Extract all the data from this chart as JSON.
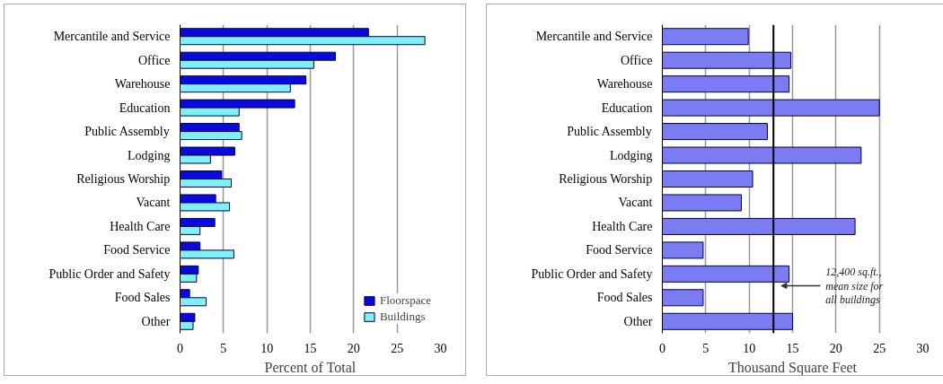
{
  "chart_data": [
    {
      "type": "bar",
      "orientation": "horizontal",
      "categories": [
        "Mercantile and Service",
        "Office",
        "Warehouse",
        "Education",
        "Public Assembly",
        "Lodging",
        "Religious Worship",
        "Vacant",
        "Health Care",
        "Food Service",
        "Public Order and Safety",
        "Food Sales",
        "Other"
      ],
      "series": [
        {
          "name": "Floorspace",
          "color": "#0a0ae0",
          "values": [
            21.7,
            17.9,
            14.5,
            13.2,
            6.8,
            6.3,
            4.8,
            4.1,
            4.0,
            2.3,
            2.1,
            1.1,
            1.7
          ]
        },
        {
          "name": "Buildings",
          "color": "#80f0f8",
          "values": [
            28.2,
            15.4,
            12.7,
            6.8,
            7.1,
            3.5,
            5.9,
            5.7,
            2.3,
            6.2,
            1.9,
            3.0,
            1.5
          ]
        }
      ],
      "xlabel": "Percent of Total",
      "xlim": [
        0,
        30
      ],
      "xticks": [
        0,
        5,
        10,
        15,
        20,
        25,
        30
      ],
      "grid": "x",
      "legend": "bottom right"
    },
    {
      "type": "bar",
      "orientation": "horizontal",
      "categories": [
        "Mercantile and Service",
        "Office",
        "Warehouse",
        "Education",
        "Public Assembly",
        "Lodging",
        "Religious Worship",
        "Vacant",
        "Health Care",
        "Food Service",
        "Public Order and Safety",
        "Food Sales",
        "Other"
      ],
      "series": [
        {
          "color": "#7b7bf2",
          "values": [
            9.9,
            14.8,
            14.6,
            25.0,
            12.1,
            22.9,
            10.4,
            9.1,
            22.2,
            4.7,
            14.6,
            4.7,
            15.0
          ]
        }
      ],
      "xlabel": "Thousand Square Feet",
      "xlim": [
        0,
        30
      ],
      "xticks": [
        0,
        5,
        10,
        15,
        20,
        25,
        30
      ],
      "grid": "x",
      "ref_lines": [
        {
          "axis": "x",
          "value": 12.8,
          "label": "12,400 sq.ft.,\nmean size for\nall buildings",
          "color": "#000000"
        }
      ]
    }
  ]
}
